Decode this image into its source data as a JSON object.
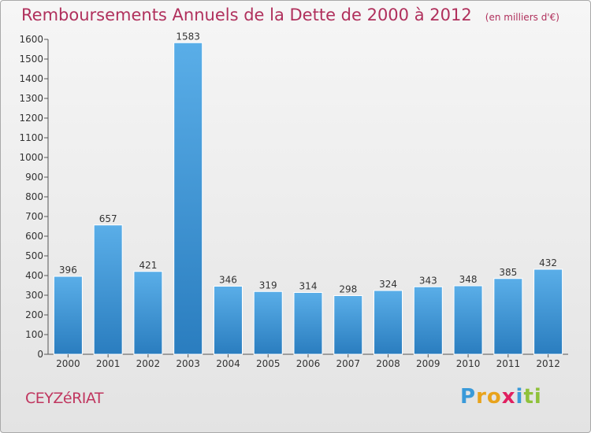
{
  "chart_data": {
    "type": "bar",
    "title": "Remboursements Annuels de la Dette de 2000 à 2012",
    "unit_label": "(en milliers d'€)",
    "categories": [
      "2000",
      "2001",
      "2002",
      "2003",
      "2004",
      "2005",
      "2006",
      "2007",
      "2008",
      "2009",
      "2010",
      "2011",
      "2012"
    ],
    "values": [
      396,
      657,
      421,
      1583,
      346,
      319,
      314,
      298,
      324,
      343,
      348,
      385,
      432
    ],
    "ylim": [
      0,
      1600
    ],
    "yticks": [
      0,
      100,
      200,
      300,
      400,
      500,
      600,
      700,
      800,
      900,
      1000,
      1100,
      1200,
      1300,
      1400,
      1500,
      1600
    ],
    "grid": false,
    "bar_color_top": "#5aaee8",
    "bar_color_bottom": "#2a7dbf"
  },
  "commune": "CEYZéRIAT",
  "logo": {
    "letters": [
      "P",
      "r",
      "o",
      "x",
      "i",
      "t",
      "i"
    ],
    "colors": [
      "#3a9ad9",
      "#e8a31c",
      "#e8a31c",
      "#e02060",
      "#3a9ad9",
      "#8fc13b",
      "#8fc13b"
    ]
  }
}
